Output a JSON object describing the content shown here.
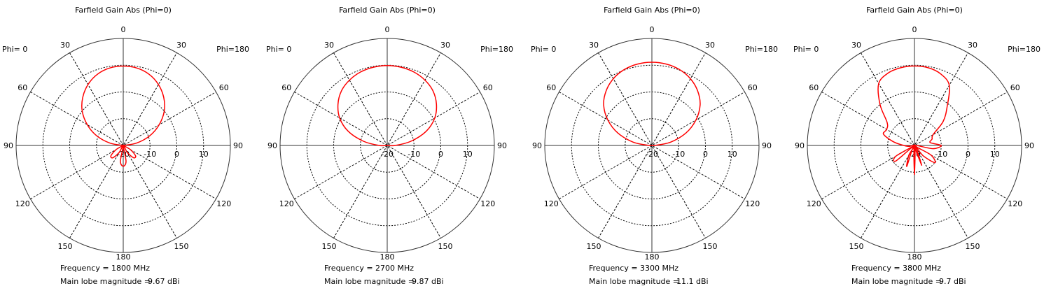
{
  "chart_data": [
    {
      "type": "polar",
      "title": "Farfield Gain Abs (Phi=0)",
      "left_label": "Phi=  0",
      "right_label": "Phi=180",
      "frequency_text": "Frequency = 1800 MHz",
      "main_lobe_label": "Main lobe magnitude =",
      "main_lobe_value": "9.67 dBi",
      "angle_ticks": [
        "0",
        "30",
        "60",
        "90",
        "120",
        "150",
        "180"
      ],
      "radial_ticks": [
        "-20",
        "-10",
        "0",
        "10"
      ],
      "rlim": [
        -20,
        20
      ],
      "theta": [
        -180,
        -170,
        -160,
        -150,
        -140,
        -130,
        -120,
        -110,
        -100,
        -90,
        -80,
        -70,
        -60,
        -50,
        -40,
        -30,
        -20,
        -10,
        0,
        10,
        20,
        30,
        40,
        50,
        60,
        70,
        80,
        90,
        100,
        110,
        120,
        130,
        140,
        150,
        160,
        170,
        180
      ],
      "gain_dbi": [
        -12.2,
        -14,
        -20,
        -17,
        -14,
        -14,
        -17,
        -20,
        -20,
        -20,
        -15,
        -9.5,
        -4.5,
        0,
        3.5,
        6.3,
        8.3,
        9.4,
        9.67,
        9.4,
        8.3,
        6.3,
        3.5,
        0,
        -4.5,
        -9.5,
        -15,
        -20,
        -20,
        -20,
        -17,
        -14,
        -14,
        -17,
        -20,
        -14,
        -12.2
      ],
      "line_color": "#ff0000"
    },
    {
      "type": "polar",
      "title": "Farfield Gain Abs (Phi=0)",
      "left_label": "Phi=  0",
      "right_label": "Phi=180",
      "frequency_text": "Frequency = 2700 MHz",
      "main_lobe_label": "Main lobe magnitude =",
      "main_lobe_value": "9.87 dBi",
      "angle_ticks": [
        "0",
        "30",
        "60",
        "90",
        "120",
        "150",
        "180"
      ],
      "radial_ticks": [
        "-20",
        "-10",
        "0",
        "10"
      ],
      "rlim": [
        -20,
        20
      ],
      "theta": [
        -180,
        -170,
        -160,
        -150,
        -140,
        -130,
        -120,
        -110,
        -100,
        -90,
        -80,
        -70,
        -60,
        -50,
        -40,
        -30,
        -20,
        -10,
        0,
        10,
        20,
        30,
        40,
        50,
        60,
        70,
        80,
        90,
        100,
        110,
        120,
        130,
        140,
        150,
        160,
        170,
        180
      ],
      "gain_dbi": [
        -20,
        -20,
        -20,
        -20,
        -20,
        -20,
        -20,
        -20,
        -20,
        -17,
        -11,
        -4.5,
        0.5,
        4,
        6.6,
        8.2,
        9.2,
        9.7,
        9.87,
        9.7,
        9.2,
        8.2,
        6.6,
        4,
        0.5,
        -4.5,
        -11,
        -17,
        -20,
        -20,
        -20,
        -20,
        -20,
        -20,
        -20,
        -20,
        -20
      ],
      "line_color": "#ff0000"
    },
    {
      "type": "polar",
      "title": "Farfield Gain Abs (Phi=0)",
      "left_label": "Phi=  0",
      "right_label": "Phi=180",
      "frequency_text": "Frequency = 3300 MHz",
      "main_lobe_label": "Main lobe magnitude =",
      "main_lobe_value": "11.1 dBi",
      "angle_ticks": [
        "0",
        "30",
        "60",
        "90",
        "120",
        "150",
        "180"
      ],
      "radial_ticks": [
        "-20",
        "-10",
        "0",
        "10"
      ],
      "rlim": [
        -20,
        20
      ],
      "theta": [
        -180,
        -170,
        -160,
        -150,
        -140,
        -130,
        -120,
        -110,
        -100,
        -90,
        -80,
        -70,
        -60,
        -50,
        -40,
        -30,
        -20,
        -10,
        0,
        10,
        20,
        30,
        40,
        50,
        60,
        70,
        80,
        90,
        100,
        110,
        120,
        130,
        140,
        150,
        160,
        170,
        180
      ],
      "gain_dbi": [
        -20,
        -20,
        -20,
        -20,
        -20,
        -20,
        -20,
        -20,
        -20,
        -19,
        -13,
        -6.5,
        -1,
        3.5,
        6.6,
        8.8,
        10.2,
        10.9,
        11.1,
        10.9,
        10.2,
        8.8,
        6.6,
        3.5,
        -1,
        -6.5,
        -13,
        -19,
        -20,
        -20,
        -20,
        -20,
        -20,
        -20,
        -20,
        -20,
        -20
      ],
      "line_color": "#ff0000"
    },
    {
      "type": "polar",
      "title": "Farfield Gain Abs (Phi=0)",
      "left_label": "Phi=  0",
      "right_label": "Phi=180",
      "frequency_text": "Frequency = 3800 MHz",
      "main_lobe_label": "Main lobe magnitude =",
      "main_lobe_value": "9.7 dBi",
      "angle_ticks": [
        "0",
        "30",
        "60",
        "90",
        "120",
        "150",
        "180"
      ],
      "radial_ticks": [
        "-20",
        "-10",
        "0",
        "10"
      ],
      "rlim": [
        -20,
        20
      ],
      "theta": [
        -180,
        -170,
        -160,
        -150,
        -140,
        -130,
        -120,
        -110,
        -100,
        -90,
        -80,
        -70,
        -60,
        -50,
        -40,
        -30,
        -20,
        -10,
        0,
        10,
        20,
        30,
        40,
        50,
        60,
        70,
        80,
        90,
        100,
        110,
        120,
        130,
        140,
        150,
        160,
        170,
        180
      ],
      "gain_dbi": [
        -9,
        -20,
        -11.7,
        -16,
        -20,
        -11,
        -12,
        -20,
        -18,
        -16,
        -12,
        -7.7,
        -8,
        -6.7,
        0,
        6.7,
        8.8,
        9.5,
        9.7,
        9.5,
        8.5,
        6,
        -1,
        -6,
        -12,
        -13,
        -14,
        -10,
        -13,
        -20,
        -13,
        -10,
        -15,
        -20,
        -12,
        -20,
        -9
      ],
      "line_color": "#ff0000"
    }
  ]
}
